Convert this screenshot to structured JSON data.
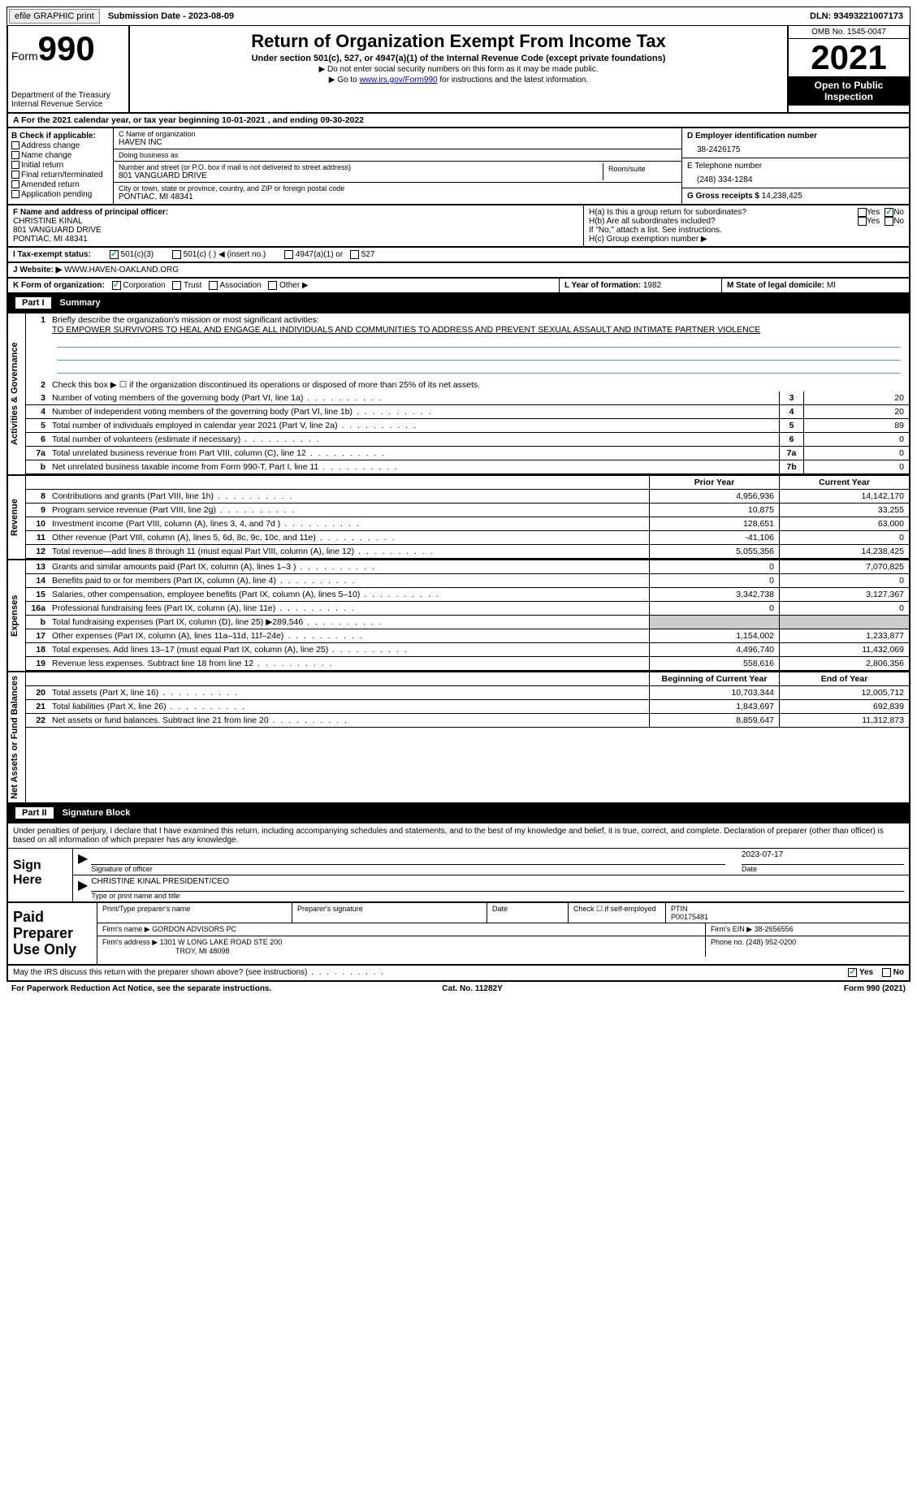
{
  "topbar": {
    "efile": "efile GRAPHIC print",
    "submission_label": "Submission Date - ",
    "submission_date": "2023-08-09",
    "dln_label": "DLN: ",
    "dln": "93493221007173"
  },
  "header": {
    "form_word": "Form",
    "form_num": "990",
    "dept": "Department of the Treasury\nInternal Revenue Service",
    "title": "Return of Organization Exempt From Income Tax",
    "subtitle": "Under section 501(c), 527, or 4947(a)(1) of the Internal Revenue Code (except private foundations)",
    "note1": "▶ Do not enter social security numbers on this form as it may be made public.",
    "note2_pre": "▶ Go to ",
    "note2_link": "www.irs.gov/Form990",
    "note2_post": " for instructions and the latest information.",
    "omb": "OMB No. 1545-0047",
    "year": "2021",
    "open": "Open to Public Inspection"
  },
  "box_a": {
    "text_pre": "A For the 2021 calendar year, or tax year beginning ",
    "begin": "10-01-2021",
    "mid": " , and ending ",
    "end": "09-30-2022"
  },
  "col_b": {
    "label": "B Check if applicable:",
    "items": [
      "Address change",
      "Name change",
      "Initial return",
      "Final return/terminated",
      "Amended return",
      "Application pending"
    ]
  },
  "col_c": {
    "name_label": "C Name of organization",
    "name": "HAVEN INC",
    "dba_label": "Doing business as",
    "dba": "",
    "street_label": "Number and street (or P.O. box if mail is not delivered to street address)",
    "street": "801 VANGUARD DRIVE",
    "room_label": "Room/suite",
    "city_label": "City or town, state or province, country, and ZIP or foreign postal code",
    "city": "PONTIAC, MI  48341"
  },
  "col_deg": {
    "d_label": "D Employer identification number",
    "d_val": "38-2426175",
    "e_label": "E Telephone number",
    "e_val": "(248) 334-1284",
    "g_label": "G Gross receipts $ ",
    "g_val": "14,238,425"
  },
  "row_f": {
    "label": "F Name and address of principal officer:",
    "name": "CHRISTINE KINAL",
    "addr1": "801 VANGUARD DRIVE",
    "addr2": "PONTIAC, MI  48341"
  },
  "row_h": {
    "a": "H(a)  Is this a group return for subordinates?",
    "b": "H(b)  Are all subordinates included?",
    "b_note": "If \"No,\" attach a list. See instructions.",
    "c": "H(c)  Group exemption number ▶",
    "yes": "Yes",
    "no": "No"
  },
  "row_i": {
    "label": "I   Tax-exempt status:",
    "opts": [
      "501(c)(3)",
      "501(c) (  ) ◀ (insert no.)",
      "4947(a)(1) or",
      "527"
    ]
  },
  "row_j": {
    "label": "J   Website: ▶ ",
    "val": "WWW.HAVEN-OAKLAND.ORG"
  },
  "row_k": {
    "label": "K Form of organization:",
    "opts": [
      "Corporation",
      "Trust",
      "Association",
      "Other ▶"
    ]
  },
  "row_l": {
    "label": "L Year of formation: ",
    "val": "1982"
  },
  "row_m": {
    "label": "M State of legal domicile: ",
    "val": "MI"
  },
  "parts": {
    "p1": "Part I",
    "p1_title": "Summary",
    "p2": "Part II",
    "p2_title": "Signature Block"
  },
  "vlabels": {
    "act": "Activities & Governance",
    "rev": "Revenue",
    "exp": "Expenses",
    "net": "Net Assets or Fund Balances"
  },
  "summary": {
    "l1_label": "Briefly describe the organization's mission or most significant activities:",
    "l1_text": "TO EMPOWER SURVIVORS TO HEAL AND ENGAGE ALL INDIVIDUALS AND COMMUNITIES TO ADDRESS AND PREVENT SEXUAL ASSAULT AND INTIMATE PARTNER VIOLENCE",
    "l2": "Check this box ▶ ☐ if the organization discontinued its operations or disposed of more than 25% of its net assets.",
    "rows_act": [
      {
        "n": "3",
        "d": "Number of voting members of the governing body (Part VI, line 1a)",
        "b": "3",
        "v": "20"
      },
      {
        "n": "4",
        "d": "Number of independent voting members of the governing body (Part VI, line 1b)",
        "b": "4",
        "v": "20"
      },
      {
        "n": "5",
        "d": "Total number of individuals employed in calendar year 2021 (Part V, line 2a)",
        "b": "5",
        "v": "89"
      },
      {
        "n": "6",
        "d": "Total number of volunteers (estimate if necessary)",
        "b": "6",
        "v": "0"
      },
      {
        "n": "7a",
        "d": "Total unrelated business revenue from Part VIII, column (C), line 12",
        "b": "7a",
        "v": "0"
      },
      {
        "n": "b",
        "d": "Net unrelated business taxable income from Form 990-T, Part I, line 11",
        "b": "7b",
        "v": "0"
      }
    ],
    "head_prior": "Prior Year",
    "head_current": "Current Year",
    "rows_rev": [
      {
        "n": "8",
        "d": "Contributions and grants (Part VIII, line 1h)",
        "p": "4,956,936",
        "c": "14,142,170"
      },
      {
        "n": "9",
        "d": "Program service revenue (Part VIII, line 2g)",
        "p": "10,875",
        "c": "33,255"
      },
      {
        "n": "10",
        "d": "Investment income (Part VIII, column (A), lines 3, 4, and 7d )",
        "p": "128,651",
        "c": "63,000"
      },
      {
        "n": "11",
        "d": "Other revenue (Part VIII, column (A), lines 5, 6d, 8c, 9c, 10c, and 11e)",
        "p": "-41,106",
        "c": "0"
      },
      {
        "n": "12",
        "d": "Total revenue—add lines 8 through 11 (must equal Part VIII, column (A), line 12)",
        "p": "5,055,356",
        "c": "14,238,425"
      }
    ],
    "rows_exp": [
      {
        "n": "13",
        "d": "Grants and similar amounts paid (Part IX, column (A), lines 1–3 )",
        "p": "0",
        "c": "7,070,825"
      },
      {
        "n": "14",
        "d": "Benefits paid to or for members (Part IX, column (A), line 4)",
        "p": "0",
        "c": "0"
      },
      {
        "n": "15",
        "d": "Salaries, other compensation, employee benefits (Part IX, column (A), lines 5–10)",
        "p": "3,342,738",
        "c": "3,127,367"
      },
      {
        "n": "16a",
        "d": "Professional fundraising fees (Part IX, column (A), line 11e)",
        "p": "0",
        "c": "0"
      },
      {
        "n": "b",
        "d": "Total fundraising expenses (Part IX, column (D), line 25) ▶289,546",
        "p": "",
        "c": "",
        "grey": true
      },
      {
        "n": "17",
        "d": "Other expenses (Part IX, column (A), lines 11a–11d, 11f–24e)",
        "p": "1,154,002",
        "c": "1,233,877"
      },
      {
        "n": "18",
        "d": "Total expenses. Add lines 13–17 (must equal Part IX, column (A), line 25)",
        "p": "4,496,740",
        "c": "11,432,069"
      },
      {
        "n": "19",
        "d": "Revenue less expenses. Subtract line 18 from line 12",
        "p": "558,616",
        "c": "2,806,356"
      }
    ],
    "head_begin": "Beginning of Current Year",
    "head_end": "End of Year",
    "rows_net": [
      {
        "n": "20",
        "d": "Total assets (Part X, line 16)",
        "p": "10,703,344",
        "c": "12,005,712"
      },
      {
        "n": "21",
        "d": "Total liabilities (Part X, line 26)",
        "p": "1,843,697",
        "c": "692,839"
      },
      {
        "n": "22",
        "d": "Net assets or fund balances. Subtract line 21 from line 20",
        "p": "8,859,647",
        "c": "11,312,873"
      }
    ]
  },
  "sig": {
    "decl": "Under penalties of perjury, I declare that I have examined this return, including accompanying schedules and statements, and to the best of my knowledge and belief, it is true, correct, and complete. Declaration of preparer (other than officer) is based on all information of which preparer has any knowledge.",
    "sign_here": "Sign Here",
    "sig_officer": "Signature of officer",
    "date_label": "Date",
    "date_val": "2023-07-17",
    "name_title_label": "Type or print name and title",
    "name_title": "CHRISTINE KINAL  PRESIDENT/CEO"
  },
  "prep": {
    "label": "Paid Preparer Use Only",
    "print_name": "Print/Type preparer's name",
    "prep_sig": "Preparer's signature",
    "date": "Date",
    "self_emp": "Check ☐ if self-employed",
    "ptin_label": "PTIN",
    "ptin": "P00175481",
    "firm_name_label": "Firm's name    ▶ ",
    "firm_name": "GORDON ADVISORS PC",
    "firm_ein_label": "Firm's EIN ▶ ",
    "firm_ein": "38-2656556",
    "firm_addr_label": "Firm's address ▶ ",
    "firm_addr1": "1301 W LONG LAKE ROAD STE 200",
    "firm_addr2": "TROY, MI  48098",
    "phone_label": "Phone no. ",
    "phone": "(248) 952-0200"
  },
  "footer": {
    "irs_q": "May the IRS discuss this return with the preparer shown above? (see instructions)",
    "yes": "Yes",
    "no": "No",
    "paperwork": "For Paperwork Reduction Act Notice, see the separate instructions.",
    "cat": "Cat. No. 11282Y",
    "form": "Form 990 (2021)"
  }
}
